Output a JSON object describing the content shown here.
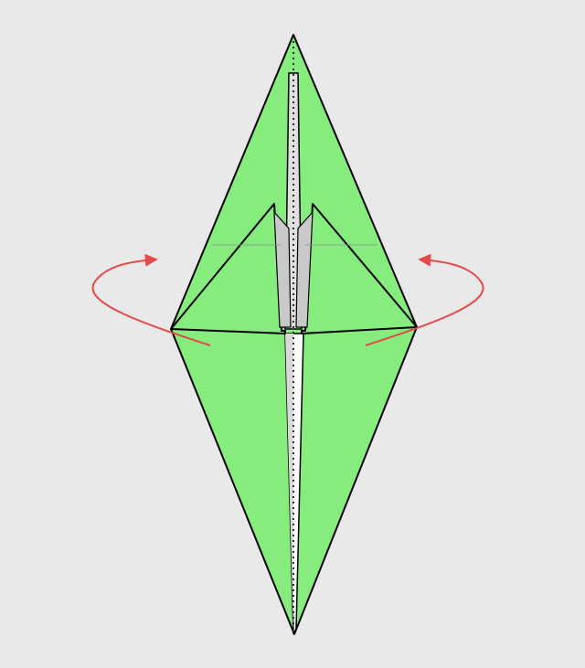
{
  "diagram": {
    "subject": "origami-fold-step",
    "colors": {
      "background": "#e9e9ea",
      "paper_front": "#86ec7e",
      "paper_back": "#ffffff",
      "inner_shadow": "#c8c8c8",
      "outline": "#000000",
      "arrow": "#e44a4a",
      "crease_faint": "#8f9a8f"
    },
    "arrows": [
      {
        "id": "left",
        "direction": "counter-clockwise"
      },
      {
        "id": "right",
        "direction": "clockwise"
      }
    ],
    "instruction_symbols": [
      "reverse-fold-arrow-left",
      "reverse-fold-arrow-right",
      "valley-crease-line"
    ]
  }
}
